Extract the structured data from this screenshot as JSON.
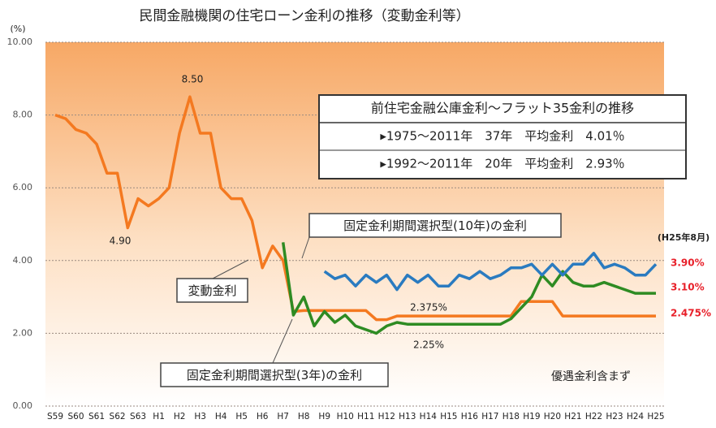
{
  "chart_data": {
    "type": "line",
    "title": "民間金融機関の住宅ローン金利の推移（変動金利等）",
    "y_unit": "(%)",
    "date_note": "(H25年8月)",
    "note": "優遇金利含まず",
    "categories": [
      "S59",
      null,
      "S60",
      null,
      "S61",
      null,
      "S62",
      null,
      "S63",
      null,
      "H1",
      null,
      "H2",
      null,
      "H3",
      null,
      "H4",
      null,
      "H5",
      null,
      "H6",
      null,
      "H7",
      null,
      "H8",
      null,
      "H9",
      null,
      "H10",
      null,
      "H11",
      null,
      "H12",
      null,
      "H13",
      null,
      "H14",
      null,
      "H15",
      null,
      "H16",
      null,
      "H17",
      null,
      "H18",
      null,
      "H19",
      null,
      "H20",
      null,
      "H21",
      null,
      "H22",
      null,
      "H23",
      null,
      "H24",
      null,
      "H25"
    ],
    "series": [
      {
        "name": "変動金利",
        "color": "#f47920",
        "end_label": "2.475%",
        "values": [
          8.0,
          7.9,
          7.6,
          7.5,
          7.2,
          6.4,
          6.4,
          4.9,
          5.7,
          5.5,
          5.7,
          6.0,
          7.5,
          8.5,
          7.5,
          7.5,
          6.0,
          5.7,
          5.7,
          5.1,
          3.8,
          4.4,
          4.0,
          2.6,
          2.625,
          2.625,
          2.625,
          2.625,
          2.625,
          2.625,
          2.625,
          2.375,
          2.375,
          2.475,
          2.475,
          2.475,
          2.475,
          2.475,
          2.475,
          2.475,
          2.475,
          2.475,
          2.475,
          2.475,
          2.475,
          2.875,
          2.875,
          2.875,
          2.875,
          2.475,
          2.475,
          2.475,
          2.475,
          2.475,
          2.475,
          2.475,
          2.475,
          2.475,
          2.475
        ]
      },
      {
        "name": "固定金利期間選択型(3年)の金利",
        "color": "#2e8b22",
        "end_label": "3.10%",
        "values": [
          null,
          null,
          null,
          null,
          null,
          null,
          null,
          null,
          null,
          null,
          null,
          null,
          null,
          null,
          null,
          null,
          null,
          null,
          null,
          null,
          null,
          null,
          4.5,
          2.5,
          3.0,
          2.2,
          2.6,
          2.3,
          2.5,
          2.2,
          2.1,
          2.0,
          2.2,
          2.3,
          2.25,
          2.25,
          2.25,
          2.25,
          2.25,
          2.25,
          2.25,
          2.25,
          2.25,
          2.25,
          2.4,
          2.7,
          3.0,
          3.6,
          3.3,
          3.7,
          3.4,
          3.3,
          3.3,
          3.4,
          3.3,
          3.2,
          3.1,
          3.1,
          3.1
        ]
      },
      {
        "name": "固定金利期間選択型(10年)の金利",
        "color": "#2a7bc0",
        "end_label": "3.90%",
        "values": [
          null,
          null,
          null,
          null,
          null,
          null,
          null,
          null,
          null,
          null,
          null,
          null,
          null,
          null,
          null,
          null,
          null,
          null,
          null,
          null,
          null,
          null,
          null,
          null,
          null,
          null,
          3.7,
          3.5,
          3.6,
          3.3,
          3.6,
          3.4,
          3.6,
          3.2,
          3.6,
          3.4,
          3.6,
          3.3,
          3.3,
          3.6,
          3.5,
          3.7,
          3.5,
          3.6,
          3.8,
          3.8,
          3.9,
          3.6,
          3.9,
          3.6,
          3.9,
          3.9,
          4.2,
          3.8,
          3.9,
          3.8,
          3.6,
          3.6,
          3.9
        ]
      }
    ],
    "annotations": [
      "8.50",
      "4.90",
      "2.375%",
      "2.25%"
    ],
    "info_box": {
      "title": "前住宅金融公庫金利～フラット35金利の推移",
      "lines": [
        "▸1975～2011年　37年　平均金利　4.01％",
        "▸1992～2011年　20年　平均金利　2.93％"
      ]
    },
    "ylim": [
      0,
      10
    ],
    "yticks": [
      {
        "value": 0,
        "label": "0.00"
      },
      {
        "value": 2,
        "label": "2.00"
      },
      {
        "value": 4,
        "label": "4.00"
      },
      {
        "value": 6,
        "label": "6.00"
      },
      {
        "value": 8,
        "label": "8.00"
      },
      {
        "value": 10,
        "label": "10.00"
      }
    ],
    "grid": true
  }
}
